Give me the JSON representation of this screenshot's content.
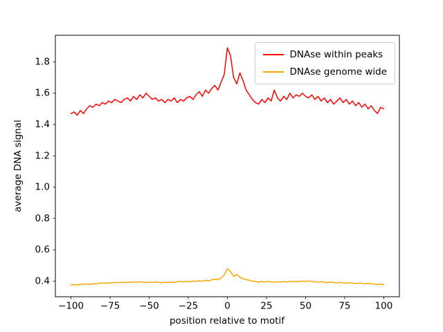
{
  "chart_data": {
    "type": "line",
    "title": "",
    "xlabel": "position relative to motif",
    "ylabel": "average DNA signal",
    "xlim": [
      -110,
      110
    ],
    "ylim": [
      0.3,
      1.97
    ],
    "xticks": [
      -100,
      -75,
      -50,
      -25,
      0,
      25,
      50,
      75,
      100
    ],
    "yticks": [
      0.4,
      0.6,
      0.8,
      1.0,
      1.2,
      1.4,
      1.6,
      1.8
    ],
    "grid": false,
    "legend_position": "upper right",
    "x": [
      -100,
      -98,
      -96,
      -94,
      -92,
      -90,
      -88,
      -86,
      -84,
      -82,
      -80,
      -78,
      -76,
      -74,
      -72,
      -70,
      -68,
      -66,
      -64,
      -62,
      -60,
      -58,
      -56,
      -54,
      -52,
      -50,
      -48,
      -46,
      -44,
      -42,
      -40,
      -38,
      -36,
      -34,
      -32,
      -30,
      -28,
      -26,
      -24,
      -22,
      -20,
      -18,
      -16,
      -14,
      -12,
      -10,
      -8,
      -6,
      -4,
      -2,
      0,
      2,
      4,
      6,
      8,
      10,
      12,
      14,
      16,
      18,
      20,
      22,
      24,
      26,
      28,
      30,
      32,
      34,
      36,
      38,
      40,
      42,
      44,
      46,
      48,
      50,
      52,
      54,
      56,
      58,
      60,
      62,
      64,
      66,
      68,
      70,
      72,
      74,
      76,
      78,
      80,
      82,
      84,
      86,
      88,
      90,
      92,
      94,
      96,
      98,
      100
    ],
    "series": [
      {
        "name": "DNAse within peaks",
        "color": "#ff0000",
        "values": [
          1.47,
          1.48,
          1.46,
          1.49,
          1.47,
          1.5,
          1.52,
          1.51,
          1.53,
          1.52,
          1.54,
          1.53,
          1.55,
          1.54,
          1.56,
          1.55,
          1.54,
          1.56,
          1.57,
          1.55,
          1.58,
          1.56,
          1.59,
          1.57,
          1.6,
          1.58,
          1.56,
          1.57,
          1.55,
          1.56,
          1.54,
          1.56,
          1.55,
          1.57,
          1.54,
          1.56,
          1.55,
          1.57,
          1.58,
          1.56,
          1.59,
          1.61,
          1.58,
          1.62,
          1.6,
          1.63,
          1.65,
          1.62,
          1.67,
          1.72,
          1.89,
          1.84,
          1.7,
          1.66,
          1.73,
          1.68,
          1.62,
          1.59,
          1.56,
          1.54,
          1.53,
          1.56,
          1.54,
          1.57,
          1.55,
          1.62,
          1.57,
          1.55,
          1.58,
          1.56,
          1.6,
          1.57,
          1.59,
          1.58,
          1.6,
          1.58,
          1.57,
          1.59,
          1.56,
          1.58,
          1.55,
          1.57,
          1.54,
          1.56,
          1.53,
          1.55,
          1.57,
          1.54,
          1.56,
          1.53,
          1.55,
          1.52,
          1.54,
          1.51,
          1.53,
          1.5,
          1.52,
          1.49,
          1.47,
          1.51,
          1.5
        ]
      },
      {
        "name": "DNAse genome wide",
        "color": "#ffa500",
        "values": [
          0.375,
          0.378,
          0.374,
          0.38,
          0.377,
          0.382,
          0.379,
          0.384,
          0.381,
          0.386,
          0.388,
          0.385,
          0.39,
          0.387,
          0.392,
          0.389,
          0.393,
          0.39,
          0.394,
          0.391,
          0.395,
          0.392,
          0.396,
          0.393,
          0.39,
          0.394,
          0.391,
          0.395,
          0.392,
          0.389,
          0.393,
          0.39,
          0.394,
          0.391,
          0.395,
          0.398,
          0.394,
          0.399,
          0.396,
          0.4,
          0.397,
          0.402,
          0.398,
          0.405,
          0.401,
          0.408,
          0.412,
          0.409,
          0.42,
          0.44,
          0.48,
          0.46,
          0.43,
          0.442,
          0.425,
          0.415,
          0.41,
          0.405,
          0.4,
          0.396,
          0.393,
          0.397,
          0.394,
          0.398,
          0.395,
          0.392,
          0.396,
          0.393,
          0.397,
          0.394,
          0.398,
          0.395,
          0.399,
          0.396,
          0.4,
          0.397,
          0.401,
          0.398,
          0.395,
          0.392,
          0.396,
          0.393,
          0.39,
          0.394,
          0.391,
          0.388,
          0.392,
          0.389,
          0.386,
          0.39,
          0.387,
          0.384,
          0.388,
          0.385,
          0.382,
          0.386,
          0.383,
          0.38,
          0.377,
          0.381,
          0.375
        ]
      }
    ]
  }
}
